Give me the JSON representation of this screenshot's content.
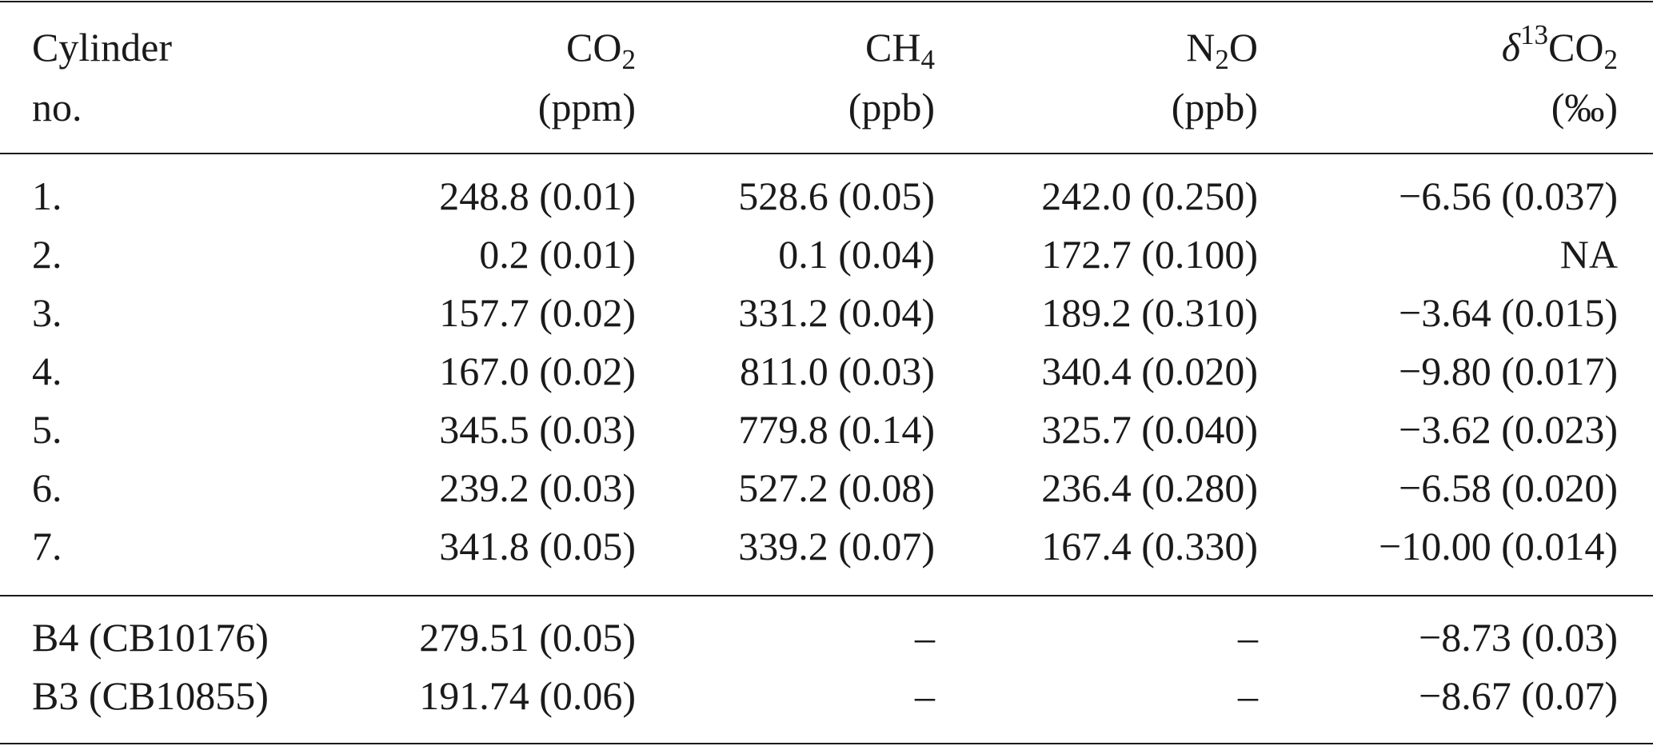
{
  "table": {
    "columns": [
      {
        "name": [
          {
            "text": "Cylinder"
          }
        ],
        "unit": "no."
      },
      {
        "name": [
          {
            "text": "CO"
          },
          {
            "text": "2",
            "script": "sub"
          }
        ],
        "unit": "(ppm)"
      },
      {
        "name": [
          {
            "text": "CH"
          },
          {
            "text": "4",
            "script": "sub"
          }
        ],
        "unit": "(ppb)"
      },
      {
        "name": [
          {
            "text": "N"
          },
          {
            "text": "2",
            "script": "sub"
          },
          {
            "text": "O"
          }
        ],
        "unit": "(ppb)"
      },
      {
        "name": [
          {
            "text": "δ",
            "style": "italic"
          },
          {
            "text": "13",
            "script": "sup"
          },
          {
            "text": "CO"
          },
          {
            "text": "2",
            "script": "sub"
          }
        ],
        "unit": "(‰)"
      }
    ],
    "body": [
      [
        [
          "1.",
          "248.8 (0.01)",
          "528.6 (0.05)",
          "242.0 (0.250)",
          "−6.56 (0.037)"
        ],
        [
          "2.",
          "0.2 (0.01)",
          "0.1 (0.04)",
          "172.7 (0.100)",
          "NA"
        ],
        [
          "3.",
          "157.7 (0.02)",
          "331.2 (0.04)",
          "189.2 (0.310)",
          "−3.64 (0.015)"
        ],
        [
          "4.",
          "167.0 (0.02)",
          "811.0 (0.03)",
          "340.4 (0.020)",
          "−9.80 (0.017)"
        ],
        [
          "5.",
          "345.5 (0.03)",
          "779.8 (0.14)",
          "325.7 (0.040)",
          "−3.62 (0.023)"
        ],
        [
          "6.",
          "239.2 (0.03)",
          "527.2 (0.08)",
          "236.4 (0.280)",
          "−6.58 (0.020)"
        ],
        [
          "7.",
          "341.8 (0.05)",
          "339.2 (0.07)",
          "167.4 (0.330)",
          "−10.00 (0.014)"
        ]
      ],
      [
        [
          "B4 (CB10176)",
          "279.51 (0.05)",
          "–",
          "–",
          "−8.73 (0.03)"
        ],
        [
          "B3 (CB10855)",
          "191.74 (0.06)",
          "–",
          "–",
          "−8.67 (0.07)"
        ]
      ]
    ]
  }
}
